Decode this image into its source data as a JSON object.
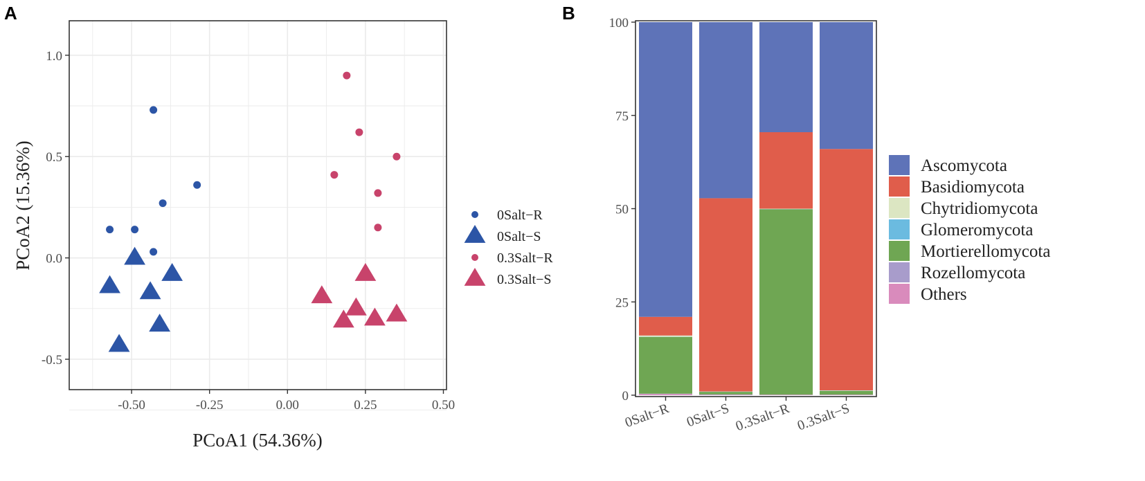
{
  "chart_data": [
    {
      "panel": "A",
      "type": "scatter",
      "xlabel": "PCoA1 (54.36%)",
      "ylabel": "PCoA2 (15.36%)",
      "xlim": [
        -0.7,
        0.51
      ],
      "ylim": [
        -0.65,
        1.17
      ],
      "xticks": [
        -0.5,
        -0.25,
        0.0,
        0.25,
        0.5
      ],
      "xtick_labels": [
        "-0.50",
        "-0.25",
        "0.00",
        "0.25",
        "0.50"
      ],
      "yticks": [
        -0.5,
        0.0,
        0.5,
        1.0
      ],
      "ytick_labels": [
        "-0.5",
        "0.0",
        "0.5",
        "1.0"
      ],
      "grid": true,
      "series": [
        {
          "name": "0Salt−R",
          "marker": "circle",
          "color": "#2C55A6",
          "points": [
            [
              -0.43,
              0.73
            ],
            [
              -0.29,
              0.36
            ],
            [
              -0.4,
              0.27
            ],
            [
              -0.57,
              0.14
            ],
            [
              -0.49,
              0.14
            ],
            [
              -0.43,
              0.03
            ]
          ]
        },
        {
          "name": "0Salt−S",
          "marker": "triangle",
          "color": "#2C55A6",
          "points": [
            [
              -0.49,
              0.0
            ],
            [
              -0.57,
              -0.14
            ],
            [
              -0.44,
              -0.17
            ],
            [
              -0.37,
              -0.08
            ],
            [
              -0.41,
              -0.33
            ],
            [
              -0.54,
              -0.43
            ]
          ]
        },
        {
          "name": "0.3Salt−R",
          "marker": "circle",
          "color": "#C8436B",
          "points": [
            [
              0.19,
              0.9
            ],
            [
              0.23,
              0.62
            ],
            [
              0.35,
              0.5
            ],
            [
              0.15,
              0.41
            ],
            [
              0.29,
              0.32
            ],
            [
              0.29,
              0.15
            ]
          ]
        },
        {
          "name": "0.3Salt−S",
          "marker": "triangle",
          "color": "#C8436B",
          "points": [
            [
              0.25,
              -0.08
            ],
            [
              0.11,
              -0.19
            ],
            [
              0.22,
              -0.25
            ],
            [
              0.18,
              -0.31
            ],
            [
              0.28,
              -0.3
            ],
            [
              0.35,
              -0.28
            ]
          ]
        }
      ]
    },
    {
      "panel": "B",
      "type": "bar",
      "stacked": true,
      "categories": [
        "0Salt−R",
        "0Salt−S",
        "0.3Salt−R",
        "0.3Salt−S"
      ],
      "ylim": [
        0,
        100
      ],
      "yticks": [
        0,
        25,
        50,
        75,
        100
      ],
      "ytick_labels": [
        "0",
        "25",
        "50",
        "75",
        "100"
      ],
      "series": [
        {
          "name": "Others",
          "color": "#D98BBC",
          "values": [
            0.3,
            0.1,
            0.1,
            0.1
          ]
        },
        {
          "name": "Rozellomycota",
          "color": "#A89CCB",
          "values": [
            0.1,
            0.1,
            0.05,
            0.05
          ]
        },
        {
          "name": "Mortierellomycota",
          "color": "#6FA653",
          "values": [
            15.2,
            0.7,
            49.7,
            1.0
          ]
        },
        {
          "name": "Glomeromycota",
          "color": "#6BBBE0",
          "values": [
            0.05,
            0.05,
            0.05,
            0.05
          ]
        },
        {
          "name": "Chytridiomycota",
          "color": "#DCE6C2",
          "values": [
            0.35,
            0.05,
            0.1,
            0.1
          ]
        },
        {
          "name": "Basidiomycota",
          "color": "#E05D4B",
          "values": [
            5.0,
            51.8,
            20.5,
            64.7
          ]
        },
        {
          "name": "Ascomycota",
          "color": "#5E73B8",
          "values": [
            79.0,
            47.2,
            29.5,
            34.0
          ]
        }
      ],
      "legend": [
        "Ascomycota",
        "Basidiomycota",
        "Chytridiomycota",
        "Glomeromycota",
        "Mortierellomycota",
        "Rozellomycota",
        "Others"
      ]
    }
  ],
  "panels": {
    "a_letter": "A",
    "b_letter": "B"
  }
}
